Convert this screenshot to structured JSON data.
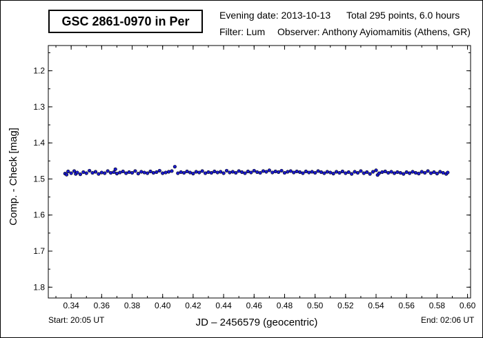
{
  "header": {
    "title": "GSC 2861-0970 in Per",
    "evening_date": "Evening date: 2013-10-13",
    "total": "Total 295 points, 6.0 hours",
    "filter": "Filter: Lum",
    "observer": "Observer: Anthony Ayiomamitis (Athens, GR)"
  },
  "footer": {
    "start": "Start: 20:05 UT",
    "end": "End: 02:06 UT"
  },
  "chart_data": {
    "type": "scatter",
    "title": "GSC 2861-0970 in Per",
    "xlabel": "JD – 2456579  (geocentric)",
    "ylabel": "Comp. - Check [mag]",
    "xlim": [
      0.325,
      0.602
    ],
    "ylim": [
      1.83,
      1.13
    ],
    "y_inverted": true,
    "xticks": [
      0.34,
      0.36,
      0.38,
      0.4,
      0.42,
      0.44,
      0.46,
      0.48,
      0.5,
      0.52,
      0.54,
      0.56,
      0.58,
      0.6
    ],
    "xtick_labels": [
      "0.34",
      "0.36",
      "0.38",
      "0.40",
      "0.42",
      "0.44",
      "0.46",
      "0.48",
      "0.50",
      "0.52",
      "0.54",
      "0.56",
      "0.58",
      "0.60"
    ],
    "yticks": [
      1.2,
      1.3,
      1.4,
      1.5,
      1.6,
      1.7,
      1.8
    ],
    "ytick_labels": [
      "1.2",
      "1.3",
      "1.4",
      "1.5",
      "1.6",
      "1.7",
      "1.8"
    ],
    "grid": false,
    "marker_fill": "#1a1acc",
    "marker_stroke": "#000000",
    "series": [
      {
        "x_start": 0.3361,
        "x_end": 0.5871,
        "n_points": 295,
        "mean_y": 1.482,
        "points": [
          [
            0.336,
            1.485
          ],
          [
            0.337,
            1.488
          ],
          [
            0.338,
            1.479
          ],
          [
            0.34,
            1.484
          ],
          [
            0.342,
            1.478
          ],
          [
            0.343,
            1.486
          ],
          [
            0.344,
            1.482
          ],
          [
            0.346,
            1.487
          ],
          [
            0.348,
            1.481
          ],
          [
            0.35,
            1.484
          ],
          [
            0.352,
            1.477
          ],
          [
            0.354,
            1.483
          ],
          [
            0.356,
            1.48
          ],
          [
            0.358,
            1.486
          ],
          [
            0.36,
            1.482
          ],
          [
            0.362,
            1.484
          ],
          [
            0.364,
            1.478
          ],
          [
            0.366,
            1.483
          ],
          [
            0.368,
            1.481
          ],
          [
            0.369,
            1.473
          ],
          [
            0.37,
            1.485
          ],
          [
            0.372,
            1.482
          ],
          [
            0.374,
            1.479
          ],
          [
            0.376,
            1.484
          ],
          [
            0.378,
            1.481
          ],
          [
            0.38,
            1.483
          ],
          [
            0.382,
            1.478
          ],
          [
            0.384,
            1.485
          ],
          [
            0.386,
            1.48
          ],
          [
            0.388,
            1.482
          ],
          [
            0.39,
            1.484
          ],
          [
            0.392,
            1.479
          ],
          [
            0.394,
            1.483
          ],
          [
            0.396,
            1.481
          ],
          [
            0.398,
            1.477
          ],
          [
            0.4,
            1.484
          ],
          [
            0.402,
            1.482
          ],
          [
            0.404,
            1.48
          ],
          [
            0.406,
            1.478
          ],
          [
            0.408,
            1.466
          ],
          [
            0.41,
            1.484
          ],
          [
            0.412,
            1.481
          ],
          [
            0.414,
            1.483
          ],
          [
            0.416,
            1.479
          ],
          [
            0.418,
            1.482
          ],
          [
            0.42,
            1.485
          ],
          [
            0.422,
            1.48
          ],
          [
            0.424,
            1.482
          ],
          [
            0.426,
            1.478
          ],
          [
            0.428,
            1.484
          ],
          [
            0.43,
            1.481
          ],
          [
            0.432,
            1.483
          ],
          [
            0.434,
            1.479
          ],
          [
            0.436,
            1.482
          ],
          [
            0.438,
            1.48
          ],
          [
            0.44,
            1.484
          ],
          [
            0.442,
            1.477
          ],
          [
            0.444,
            1.482
          ],
          [
            0.446,
            1.48
          ],
          [
            0.448,
            1.483
          ],
          [
            0.45,
            1.478
          ],
          [
            0.452,
            1.481
          ],
          [
            0.454,
            1.484
          ],
          [
            0.456,
            1.479
          ],
          [
            0.458,
            1.482
          ],
          [
            0.46,
            1.477
          ],
          [
            0.462,
            1.481
          ],
          [
            0.464,
            1.483
          ],
          [
            0.466,
            1.478
          ],
          [
            0.468,
            1.48
          ],
          [
            0.47,
            1.476
          ],
          [
            0.472,
            1.482
          ],
          [
            0.474,
            1.479
          ],
          [
            0.476,
            1.481
          ],
          [
            0.478,
            1.477
          ],
          [
            0.48,
            1.483
          ],
          [
            0.482,
            1.48
          ],
          [
            0.484,
            1.478
          ],
          [
            0.486,
            1.482
          ],
          [
            0.488,
            1.479
          ],
          [
            0.49,
            1.481
          ],
          [
            0.492,
            1.484
          ],
          [
            0.494,
            1.479
          ],
          [
            0.496,
            1.482
          ],
          [
            0.498,
            1.48
          ],
          [
            0.5,
            1.483
          ],
          [
            0.502,
            1.478
          ],
          [
            0.504,
            1.481
          ],
          [
            0.506,
            1.484
          ],
          [
            0.508,
            1.48
          ],
          [
            0.51,
            1.482
          ],
          [
            0.512,
            1.485
          ],
          [
            0.514,
            1.48
          ],
          [
            0.516,
            1.483
          ],
          [
            0.518,
            1.479
          ],
          [
            0.52,
            1.484
          ],
          [
            0.522,
            1.481
          ],
          [
            0.524,
            1.486
          ],
          [
            0.526,
            1.48
          ],
          [
            0.528,
            1.483
          ],
          [
            0.53,
            1.478
          ],
          [
            0.532,
            1.484
          ],
          [
            0.534,
            1.481
          ],
          [
            0.536,
            1.486
          ],
          [
            0.538,
            1.48
          ],
          [
            0.54,
            1.476
          ],
          [
            0.541,
            1.489
          ],
          [
            0.542,
            1.484
          ],
          [
            0.544,
            1.481
          ],
          [
            0.546,
            1.479
          ],
          [
            0.548,
            1.483
          ],
          [
            0.55,
            1.48
          ],
          [
            0.552,
            1.484
          ],
          [
            0.554,
            1.481
          ],
          [
            0.556,
            1.483
          ],
          [
            0.558,
            1.486
          ],
          [
            0.56,
            1.481
          ],
          [
            0.562,
            1.484
          ],
          [
            0.564,
            1.48
          ],
          [
            0.566,
            1.483
          ],
          [
            0.568,
            1.485
          ],
          [
            0.57,
            1.48
          ],
          [
            0.572,
            1.483
          ],
          [
            0.574,
            1.478
          ],
          [
            0.576,
            1.484
          ],
          [
            0.578,
            1.481
          ],
          [
            0.58,
            1.485
          ],
          [
            0.582,
            1.48
          ],
          [
            0.584,
            1.483
          ],
          [
            0.586,
            1.486
          ],
          [
            0.587,
            1.482
          ]
        ]
      }
    ]
  }
}
